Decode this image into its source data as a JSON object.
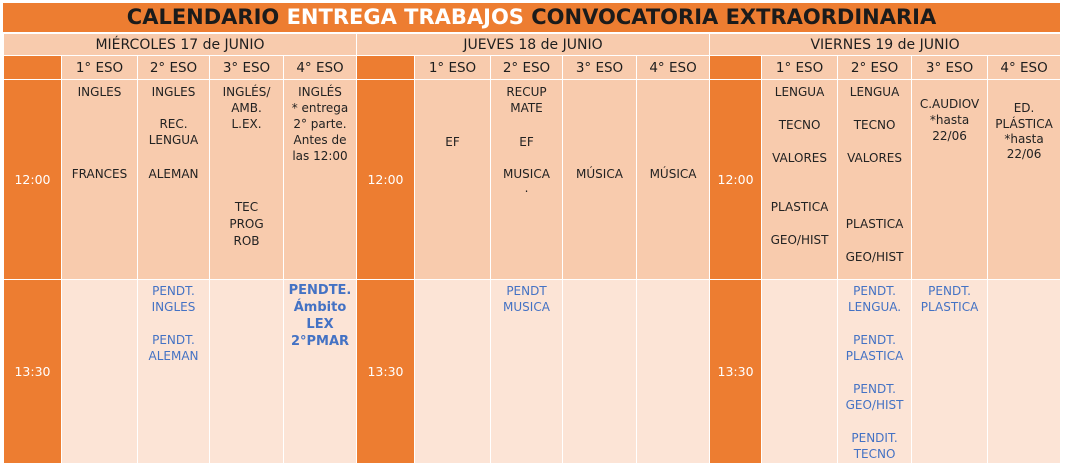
{
  "title": {
    "part1": "CALENDARIO ",
    "part2": "ENTREGA TRABAJOS",
    "part3": " CONVOCATORIA EXTRAORDINARIA"
  },
  "days": {
    "wed": "MIÉRCOLES 17 de JUNIO",
    "thu": "JUEVES 18 de JUNIO",
    "fri": "VIERNES 19 de JUNIO"
  },
  "levels": {
    "eso1": "1° ESO",
    "eso2": "2° ESO",
    "eso3": "3° ESO",
    "eso4": "4° ESO"
  },
  "times": {
    "t1": "12:00",
    "t2": "13:30"
  },
  "wed": {
    "r1": {
      "eso1": [
        "INGLES",
        "FRANCES"
      ],
      "eso2": [
        "INGLES",
        "REC.",
        "LENGUA",
        "ALEMAN"
      ],
      "eso3": [
        "INGLÉS/",
        "AMB.",
        "L.EX.",
        "TEC",
        "PROG",
        "ROB"
      ],
      "eso4": [
        "INGLÉS",
        "* entrega",
        "2° parte.",
        "Antes de",
        "las 12:00"
      ]
    },
    "r2": {
      "eso2": [
        "PENDT.",
        "INGLES",
        "PENDT.",
        "ALEMAN"
      ],
      "eso4": [
        "PENDTE.",
        "Ámbito",
        "LEX",
        "2°PMAR"
      ]
    }
  },
  "thu": {
    "r1": {
      "eso1": [
        "EF"
      ],
      "eso2": [
        "RECUP",
        "MATE",
        "EF",
        "MUSICA",
        "."
      ],
      "eso3": [
        "MÚSICA"
      ],
      "eso4": [
        "MÚSICA"
      ]
    },
    "r2": {
      "eso2": [
        "PENDT",
        "MUSICA"
      ]
    }
  },
  "fri": {
    "r1": {
      "eso1": [
        "LENGUA",
        "TECNO",
        "VALORES",
        "PLASTICA",
        "GEO/HIST"
      ],
      "eso2": [
        "LENGUA",
        "TECNO",
        "VALORES",
        "PLASTICA",
        "GEO/HIST"
      ],
      "eso3": [
        "C.AUDIOV",
        "*hasta",
        "22/06"
      ],
      "eso4": [
        "ED.",
        "PLÁSTICA",
        "*hasta",
        "22/06"
      ]
    },
    "r2": {
      "eso2": [
        "PENDT.",
        "LENGUA.",
        "PENDT.",
        "PLASTICA",
        "PENDT.",
        "GEO/HIST",
        "PENDIT.",
        "TECNO"
      ],
      "eso3": [
        "PENDT.",
        "PLASTICA"
      ]
    }
  }
}
